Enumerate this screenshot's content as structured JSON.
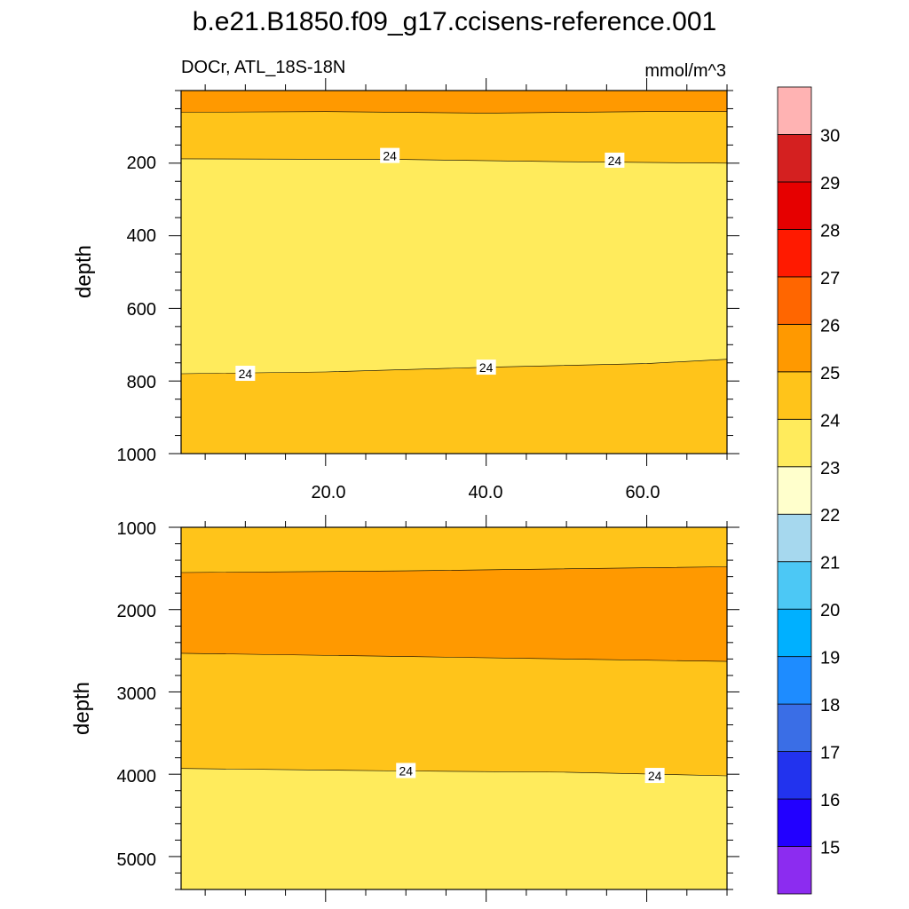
{
  "title": "b.e21.B1850.f09_g17.ccisens-reference.001",
  "chart_data": [
    {
      "type": "contour",
      "subtitle_left": "DOCr, ATL_18S-18N",
      "subtitle_right": "mmol/m^3",
      "xlabel": "",
      "ylabel": "depth",
      "x_range": [
        2,
        70
      ],
      "x_ticks": [
        "20.0",
        "40.0",
        "60.0"
      ],
      "ylim": [
        0,
        1000
      ],
      "y_reversed": true,
      "y_ticks": [
        "200",
        "400",
        "600",
        "800",
        "1000"
      ],
      "bands": [
        {
          "level": "25-26",
          "color": "#ff9900",
          "upper_boundary": null,
          "lower_boundary": [
            [
              2,
              60
            ],
            [
              20,
              58
            ],
            [
              40,
              62
            ],
            [
              60,
              58
            ],
            [
              70,
              58
            ]
          ]
        },
        {
          "level": "24-25",
          "color": "#ffc41a",
          "upper_boundary": [
            [
              2,
              60
            ],
            [
              20,
              58
            ],
            [
              40,
              62
            ],
            [
              60,
              58
            ],
            [
              70,
              58
            ]
          ],
          "lower_boundary": [
            [
              2,
              188
            ],
            [
              30,
              190
            ],
            [
              50,
              196
            ],
            [
              70,
              200
            ]
          ]
        },
        {
          "level": "23-24",
          "color": "#ffeb5c",
          "upper_boundary": [
            [
              2,
              188
            ],
            [
              30,
              190
            ],
            [
              50,
              196
            ],
            [
              70,
              200
            ]
          ],
          "lower_boundary": [
            [
              2,
              780
            ],
            [
              20,
              775
            ],
            [
              40,
              762
            ],
            [
              60,
              752
            ],
            [
              70,
              740
            ]
          ]
        },
        {
          "level": "24-25",
          "color": "#ffc41a",
          "upper_boundary": [
            [
              2,
              780
            ],
            [
              20,
              775
            ],
            [
              40,
              762
            ],
            [
              60,
              752
            ],
            [
              70,
              740
            ]
          ],
          "lower_boundary": null
        }
      ],
      "contour_labels": [
        {
          "x": 28,
          "y": 180,
          "text": "24"
        },
        {
          "x": 56,
          "y": 193,
          "text": "24"
        },
        {
          "x": 10,
          "y": 780,
          "text": "24"
        },
        {
          "x": 40,
          "y": 763,
          "text": "24"
        }
      ]
    },
    {
      "type": "contour",
      "xlabel": "",
      "ylabel": "depth",
      "x_range": [
        2,
        70
      ],
      "ylim": [
        1000,
        5400
      ],
      "y_reversed": true,
      "y_ticks": [
        "1000",
        "2000",
        "3000",
        "4000",
        "5000"
      ],
      "bands": [
        {
          "level": "24-25",
          "color": "#ffc41a",
          "upper_boundary": null,
          "lower_boundary": [
            [
              2,
              1550
            ],
            [
              30,
              1530
            ],
            [
              70,
              1480
            ]
          ]
        },
        {
          "level": "25-26",
          "color": "#ff9900",
          "upper_boundary": [
            [
              2,
              1550
            ],
            [
              30,
              1530
            ],
            [
              70,
              1480
            ]
          ],
          "lower_boundary": [
            [
              2,
              2530
            ],
            [
              30,
              2570
            ],
            [
              70,
              2630
            ]
          ]
        },
        {
          "level": "24-25",
          "color": "#ffc41a",
          "upper_boundary": [
            [
              2,
              2530
            ],
            [
              30,
              2570
            ],
            [
              70,
              2630
            ]
          ],
          "lower_boundary": [
            [
              2,
              3930
            ],
            [
              30,
              3960
            ],
            [
              50,
              3975
            ],
            [
              70,
              4020
            ]
          ]
        },
        {
          "level": "23-24",
          "color": "#ffeb5c",
          "upper_boundary": [
            [
              2,
              3930
            ],
            [
              30,
              3960
            ],
            [
              50,
              3975
            ],
            [
              70,
              4020
            ]
          ],
          "lower_boundary": null
        }
      ],
      "contour_labels": [
        {
          "x": 30,
          "y": 3960,
          "text": "24"
        },
        {
          "x": 61,
          "y": 4020,
          "text": "24"
        }
      ]
    }
  ],
  "colorbar": {
    "levels": [
      "15",
      "16",
      "17",
      "18",
      "19",
      "20",
      "21",
      "22",
      "23",
      "24",
      "25",
      "26",
      "27",
      "28",
      "29",
      "30"
    ],
    "colors_bottom_to_top": [
      "#8c2cf0",
      "#2200ff",
      "#2233ee",
      "#3a6ee6",
      "#1e8cff",
      "#00b0ff",
      "#4cc8f5",
      "#a6d8ee",
      "#ffffcc",
      "#ffeb5c",
      "#ffc41a",
      "#ff9900",
      "#ff6600",
      "#ff1a00",
      "#e60000",
      "#d42020",
      "#ffb3b3"
    ]
  }
}
